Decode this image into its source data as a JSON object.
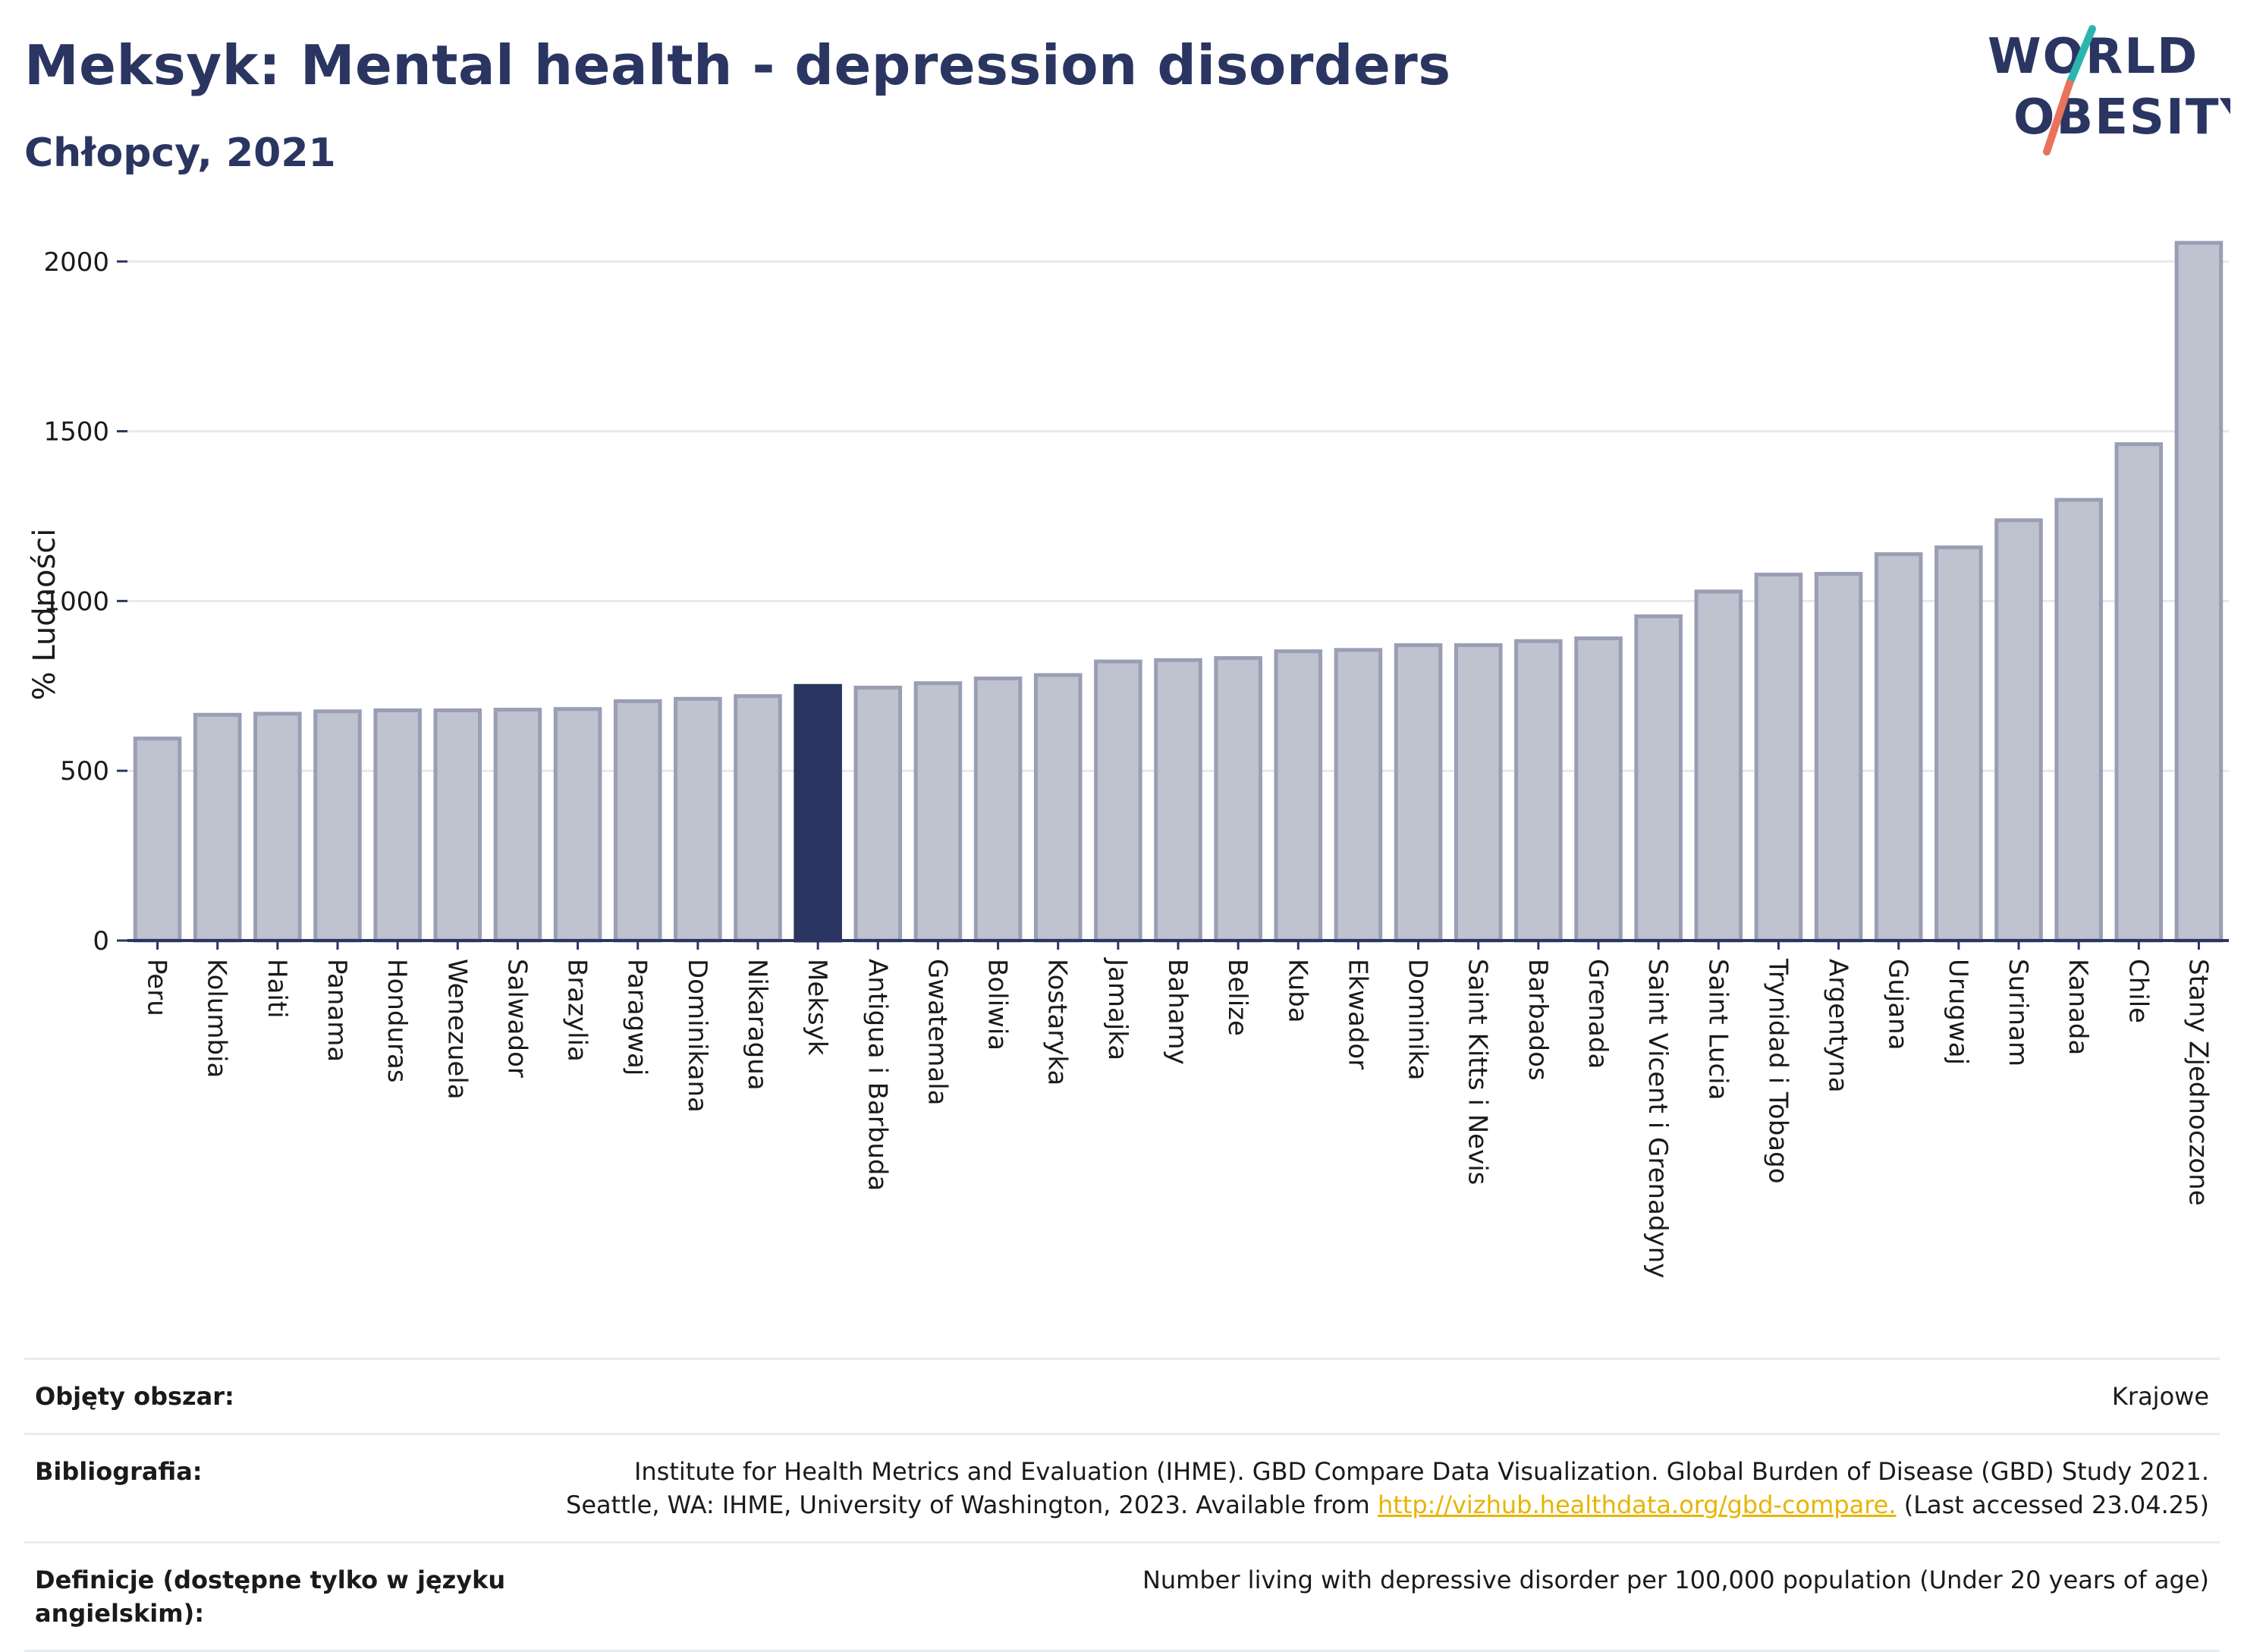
{
  "header": {
    "title": "Meksyk: Mental health - depression disorders",
    "subtitle": "Chłopcy, 2021"
  },
  "logo": {
    "line1": "WORLD",
    "line2": "OBESITY",
    "accent_teal": "#2bb5b0",
    "accent_coral": "#e8735a"
  },
  "colors": {
    "bar": "#bfc2cf",
    "bar_stroke": "#9a9eb5",
    "highlight": "#2a3561",
    "axis": "#2a3561",
    "grid": "#e6e8ec"
  },
  "chart_data": {
    "type": "bar",
    "title": "Meksyk: Mental health - depression disorders",
    "subtitle": "Chłopcy, 2021",
    "ylabel": "% Ludności",
    "xlabel": "",
    "ylim": [
      0,
      2100
    ],
    "yticks": [
      0,
      500,
      1000,
      1500,
      2000
    ],
    "grid": true,
    "highlight": "Meksyk",
    "categories": [
      "Peru",
      "Kolumbia",
      "Haiti",
      "Panama",
      "Honduras",
      "Wenezuela",
      "Salwador",
      "Brazylia",
      "Paragwaj",
      "Dominikana",
      "Nikaragua",
      "Meksyk",
      "Antigua i Barbuda",
      "Gwatemala",
      "Boliwia",
      "Kostaryka",
      "Jamajka",
      "Bahamy",
      "Belize",
      "Kuba",
      "Ekwador",
      "Dominika",
      "Saint Kitts i Nevis",
      "Barbados",
      "Grenada",
      "Saint Vicent i Grenadyny",
      "Saint Lucia",
      "Trynidad i Tobago",
      "Argentyna",
      "Gujana",
      "Urugwaj",
      "Surinam",
      "Kanada",
      "Chile",
      "Stany Zjednoczone"
    ],
    "values": [
      595,
      665,
      668,
      675,
      678,
      678,
      680,
      682,
      705,
      712,
      720,
      750,
      745,
      758,
      772,
      782,
      822,
      826,
      832,
      852,
      856,
      870,
      870,
      882,
      890,
      955,
      1028,
      1078,
      1080,
      1138,
      1158,
      1238,
      1298,
      1462,
      2055
    ]
  },
  "info": {
    "rows": [
      {
        "key": "Objęty obszar:",
        "value": "Krajowe"
      },
      {
        "key": "Bibliografia:",
        "value_line1": "Institute for Health Metrics and Evaluation (IHME). GBD Compare Data Visualization. Global Burden of Disease (GBD) Study 2021.",
        "value_line2_pre": "Seattle, WA: IHME, University of Washington, 2023. Available from ",
        "link": "http://vizhub.healthdata.org/gbd-compare.",
        "value_line2_post": " (Last accessed 23.04.25)"
      },
      {
        "key": "Definicje (dostępne tylko w języku angielskim):",
        "value": "Number living with depressive disorder per 100,000 population (Under 20 years of age)"
      }
    ]
  }
}
